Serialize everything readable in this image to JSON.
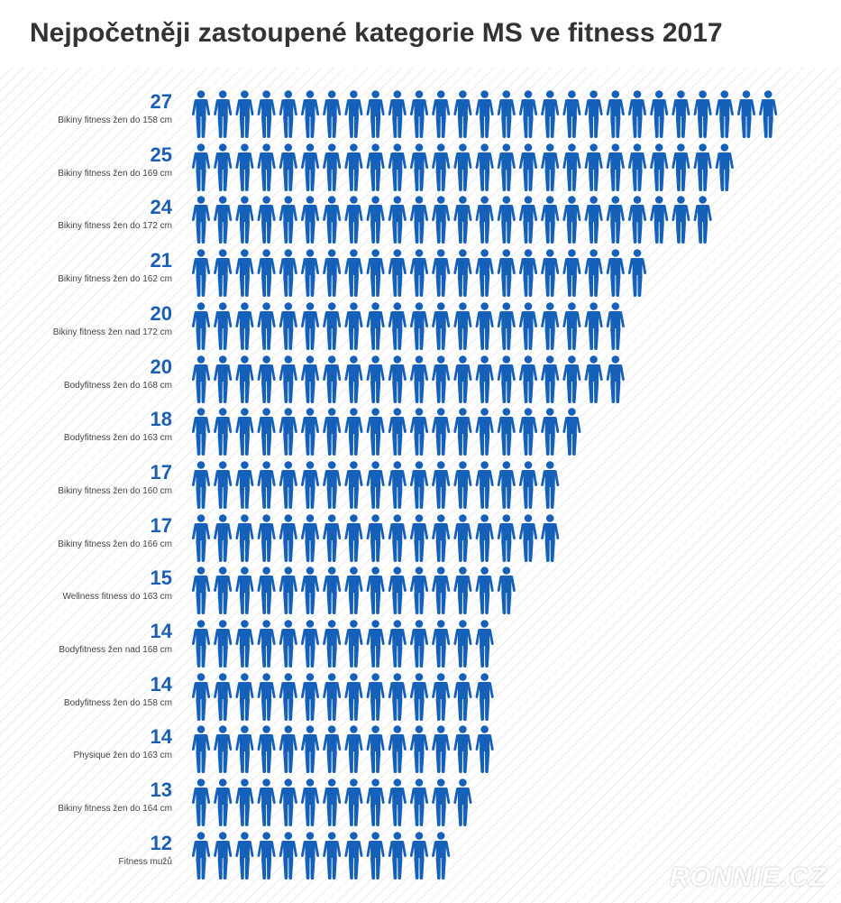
{
  "title": "Nejpočetněji zastoupené kategorie MS ve fitness 2017",
  "watermark": "RONNIE.CZ",
  "colors": {
    "icon": "#1560b8",
    "value": "#1a5fb4"
  },
  "chart_data": {
    "type": "pictograph",
    "unit_icon": "person-icon",
    "categories": [
      "Bikiny fitness žen do 158 cm",
      "Bikiny fitness žen do 169 cm",
      "Bikiny fitness žen do 172 cm",
      "Bikiny fitness žen do 162 cm",
      "Bikiny fitness žen nad 172 cm",
      "Bodyfitness žen do 168 cm",
      "Bodyfitness žen do 163 cm",
      "Bikiny fitness žen do 160 cm",
      "Bikiny fitness žen do 166 cm",
      "Wellness fitness do 163 cm",
      "Bodyfitness žen nad 168 cm",
      "Bodyfitness žen do 158 cm",
      "Physique žen do 163 cm",
      "Bikiny fitness žen do 164 cm",
      "Fitness mužů"
    ],
    "values": [
      27,
      25,
      24,
      21,
      20,
      20,
      18,
      17,
      17,
      15,
      14,
      14,
      14,
      13,
      12
    ]
  }
}
